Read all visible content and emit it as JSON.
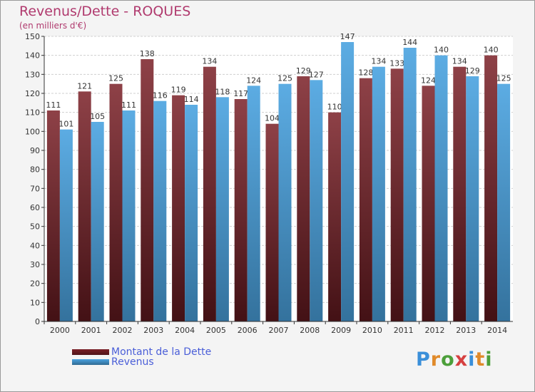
{
  "title": "Revenus/Dette - ROQUES",
  "subtitle": "(en milliers d'€)",
  "logo": {
    "text": "Proxiti",
    "colors": [
      "#3a8fd9",
      "#e08a2a",
      "#4c9f3a",
      "#d64040",
      "#3a8fd9",
      "#e08a2a",
      "#4c9f3a"
    ]
  },
  "legend": [
    {
      "label": "Montant de la Dette",
      "color": "#7a1f26"
    },
    {
      "label": "Revenus",
      "color": "#4aa3e0"
    }
  ],
  "chart_data": {
    "type": "bar",
    "categories": [
      "2000",
      "2001",
      "2002",
      "2003",
      "2004",
      "2005",
      "2006",
      "2007",
      "2008",
      "2009",
      "2010",
      "2011",
      "2012",
      "2013",
      "2014"
    ],
    "series": [
      {
        "name": "Montant de la Dette",
        "color": "#7a1f26",
        "values": [
          111,
          121,
          125,
          138,
          119,
          134,
          117,
          104,
          129,
          110,
          128,
          133,
          124,
          134,
          140
        ]
      },
      {
        "name": "Revenus",
        "color": "#4aa3e0",
        "values": [
          101,
          105,
          111,
          116,
          114,
          118,
          124,
          125,
          127,
          147,
          134,
          144,
          140,
          129,
          125
        ]
      }
    ],
    "yticks": [
      0,
      10,
      20,
      30,
      40,
      50,
      60,
      70,
      80,
      90,
      100,
      110,
      120,
      130,
      140,
      150
    ],
    "ylim": [
      0,
      150
    ],
    "grid": true,
    "legend_position": "bottom-left"
  }
}
